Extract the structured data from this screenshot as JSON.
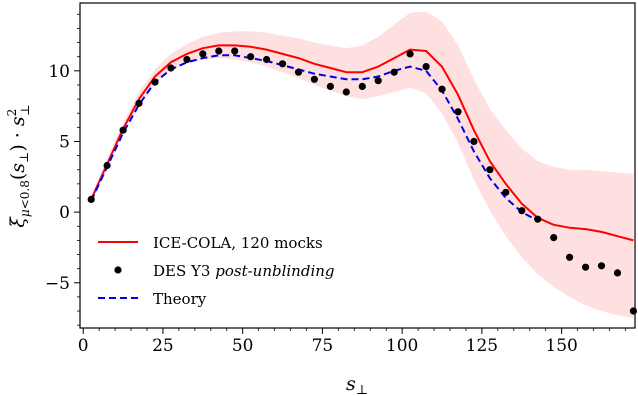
{
  "chart_data": {
    "type": "line",
    "xlim": [
      -1,
      173
    ],
    "ylim": [
      -8.2,
      14.8
    ],
    "x_ticks": [
      0,
      25,
      50,
      75,
      100,
      125,
      150
    ],
    "y_ticks": [
      -5,
      0,
      5,
      10
    ],
    "x_tick_labels": [
      "0",
      "25",
      "50",
      "75",
      "100",
      "125",
      "150"
    ],
    "y_tick_labels": [
      "−5",
      "0",
      "5",
      "10"
    ],
    "x_minor_step": 5,
    "y_minor_step": 1,
    "xlabel": "s⊥",
    "ylabel": "ξμ<0.8(s⊥) · s⊥²",
    "legend_position": "lower-left",
    "grid": false,
    "colors": {
      "mocks_line": "#ff0000",
      "mocks_band": "#ffe0e0",
      "data_points": "#000000",
      "theory_line": "#0000e6"
    },
    "series": [
      {
        "name": "ICE-COLA, 120 mocks",
        "kind": "line",
        "x": [
          2.5,
          7.5,
          12.5,
          17.5,
          22.5,
          27.5,
          32.5,
          37.5,
          42.5,
          47.5,
          52.5,
          57.5,
          62.5,
          67.5,
          72.5,
          77.5,
          82.5,
          87.5,
          92.5,
          97.5,
          102.5,
          107.5,
          112.5,
          117.5,
          122.5,
          127.5,
          132.5,
          137.5,
          142.5,
          147.5,
          152.5,
          157.5,
          162.5,
          167.5,
          172.5
        ],
        "y": [
          0.9,
          3.4,
          5.9,
          8.0,
          9.6,
          10.6,
          11.2,
          11.6,
          11.8,
          11.8,
          11.7,
          11.5,
          11.2,
          10.9,
          10.5,
          10.2,
          9.9,
          9.9,
          10.3,
          10.9,
          11.5,
          11.4,
          10.3,
          8.3,
          5.8,
          3.6,
          2.0,
          0.6,
          -0.4,
          -0.9,
          -1.1,
          -1.2,
          -1.4,
          -1.7,
          -2.0
        ]
      },
      {
        "name": "ICE-COLA band",
        "kind": "band",
        "x": [
          2.5,
          7.5,
          12.5,
          17.5,
          22.5,
          27.5,
          32.5,
          37.5,
          42.5,
          47.5,
          52.5,
          57.5,
          62.5,
          67.5,
          72.5,
          77.5,
          82.5,
          87.5,
          92.5,
          97.5,
          102.5,
          107.5,
          112.5,
          117.5,
          122.5,
          127.5,
          132.5,
          137.5,
          142.5,
          147.5,
          152.5,
          157.5,
          162.5,
          167.5,
          172.5
        ],
        "y_low": [
          0.7,
          3.0,
          5.5,
          7.6,
          9.1,
          10.0,
          10.5,
          10.8,
          10.9,
          10.8,
          10.6,
          10.3,
          9.9,
          9.5,
          9.0,
          8.6,
          8.2,
          8.0,
          8.2,
          8.5,
          8.8,
          8.4,
          7.0,
          4.9,
          2.3,
          0.1,
          -1.7,
          -3.2,
          -4.4,
          -5.3,
          -6.0,
          -6.6,
          -7.0,
          -7.3,
          -7.5
        ],
        "y_high": [
          1.1,
          3.8,
          6.3,
          8.5,
          10.1,
          11.2,
          11.9,
          12.4,
          12.7,
          12.8,
          12.8,
          12.7,
          12.5,
          12.3,
          12.0,
          11.8,
          11.6,
          11.8,
          12.4,
          13.3,
          14.1,
          14.2,
          13.5,
          11.8,
          9.4,
          7.3,
          5.8,
          4.5,
          3.6,
          3.2,
          3.0,
          3.0,
          2.9,
          2.8,
          2.7
        ]
      },
      {
        "name": "DES Y3 post-unblinding",
        "kind": "points",
        "x": [
          2.5,
          7.5,
          12.5,
          17.5,
          22.5,
          27.5,
          32.5,
          37.5,
          42.5,
          47.5,
          52.5,
          57.5,
          62.5,
          67.5,
          72.5,
          77.5,
          82.5,
          87.5,
          92.5,
          97.5,
          102.5,
          107.5,
          112.5,
          117.5,
          122.5,
          127.5,
          132.5,
          137.5,
          142.5,
          147.5,
          152.5,
          157.5,
          162.5,
          167.5,
          172.5
        ],
        "y": [
          0.9,
          3.3,
          5.8,
          7.7,
          9.2,
          10.2,
          10.8,
          11.2,
          11.4,
          11.4,
          11.0,
          10.8,
          10.5,
          9.9,
          9.4,
          8.9,
          8.5,
          8.9,
          9.3,
          9.9,
          11.2,
          10.3,
          8.7,
          7.1,
          5.0,
          3.0,
          1.4,
          0.1,
          -0.5,
          -1.8,
          -3.2,
          -3.9,
          -3.8,
          -4.3,
          -7.0
        ]
      },
      {
        "name": "Theory",
        "kind": "dashed",
        "x": [
          2.5,
          7.5,
          12.5,
          17.5,
          22.5,
          27.5,
          32.5,
          37.5,
          42.5,
          47.5,
          52.5,
          57.5,
          62.5,
          67.5,
          72.5,
          77.5,
          82.5,
          87.5,
          92.5,
          97.5,
          102.5,
          107.5,
          112.5,
          117.5,
          122.5,
          127.5,
          132.5,
          137.5,
          142.5
        ],
        "y": [
          0.8,
          3.2,
          5.6,
          7.6,
          9.2,
          10.1,
          10.6,
          10.9,
          11.1,
          11.1,
          10.9,
          10.7,
          10.4,
          10.1,
          9.8,
          9.6,
          9.4,
          9.4,
          9.6,
          10.0,
          10.3,
          10.0,
          8.6,
          6.6,
          4.3,
          2.4,
          1.0,
          0.0,
          -0.6
        ]
      }
    ],
    "legend": {
      "entries": [
        {
          "label": "ICE-COLA, 120 mocks",
          "style": "line"
        },
        {
          "label_prefix": "DES Y3 ",
          "label_emph": "post-unblinding",
          "style": "dot"
        },
        {
          "label": "Theory",
          "style": "dashed"
        }
      ]
    }
  }
}
